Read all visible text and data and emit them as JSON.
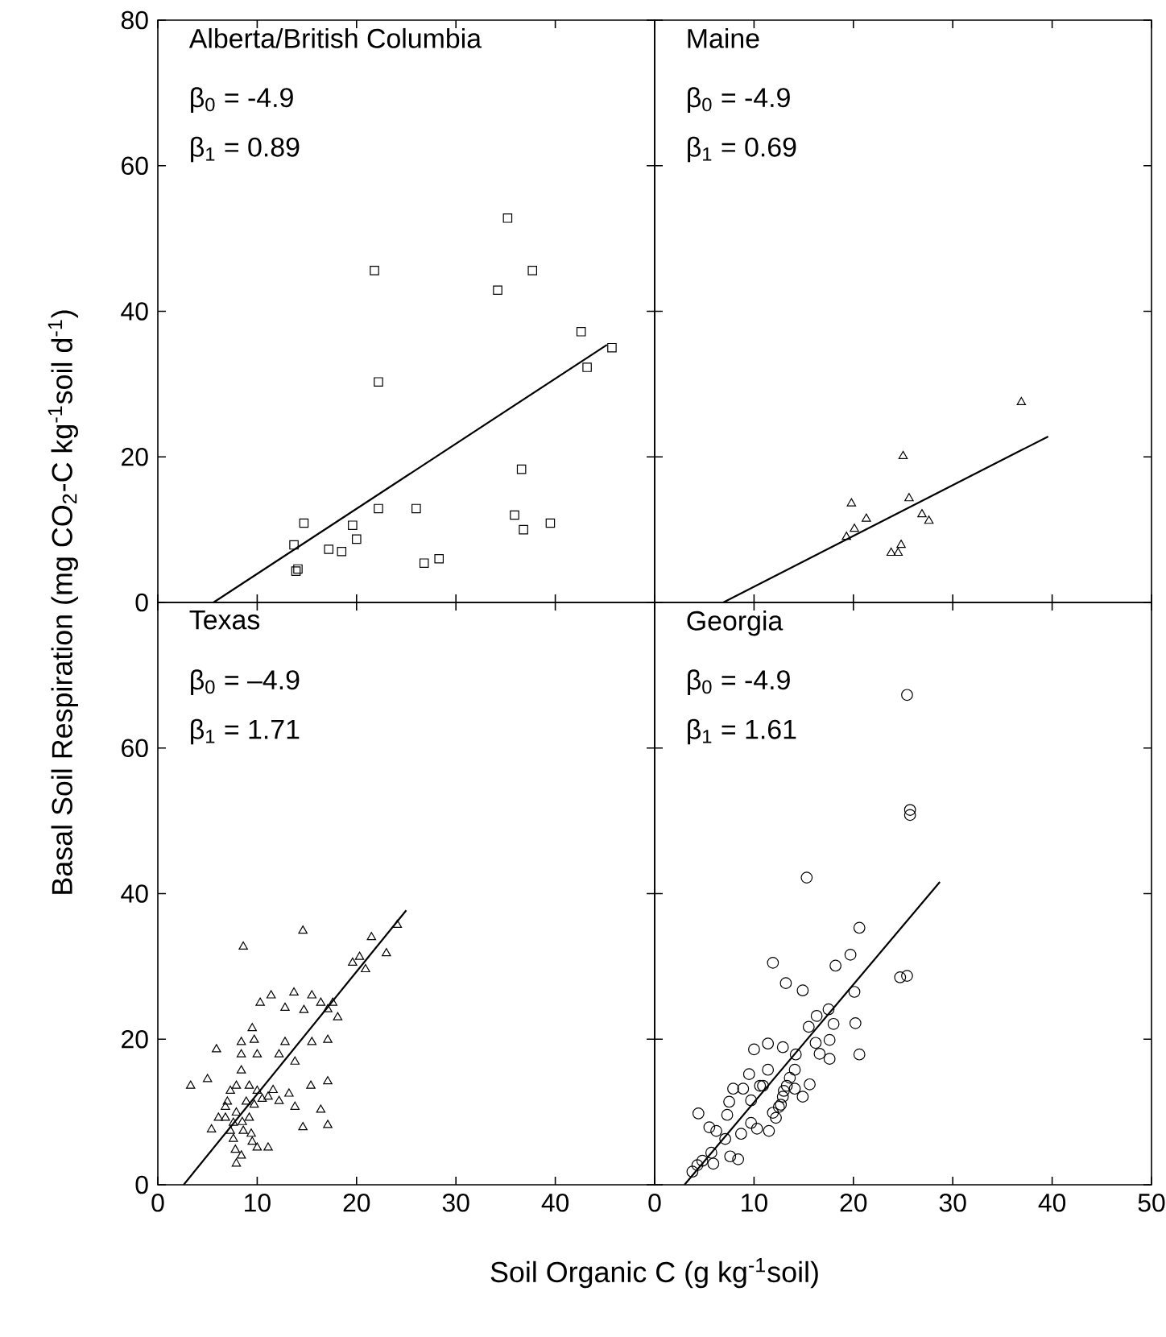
{
  "chart_data": [
    {
      "type": "scatter",
      "title": "Alberta/British Columbia",
      "annotations": [
        "β$_{0}$ = -4.9",
        "β$_{1}$ = 0.89"
      ],
      "ylabel": "Basal Soil Respiration (mg CO$_{2}$-C kg$^{-1}$soil d$^{-1}$)",
      "xlim": [
        0,
        50
      ],
      "ylim": [
        0,
        80
      ],
      "xticks": [
        0,
        10,
        20,
        30,
        40
      ],
      "yticks": [
        0,
        20,
        40,
        60,
        80
      ],
      "tick_labels": "y",
      "series": [
        {
          "marker": "square",
          "color": "#000000",
          "x": [
            13.7,
            14.7,
            13.9,
            14.1,
            17.2,
            18.5,
            19.6,
            20.0,
            21.8,
            22.2,
            22.2,
            26.0,
            26.8,
            28.3,
            34.2,
            35.2,
            37.7,
            36.6,
            35.9,
            36.8,
            39.5,
            42.6,
            43.2,
            45.7
          ],
          "values": [
            7.9,
            10.9,
            4.3,
            4.6,
            7.3,
            7.0,
            10.6,
            8.7,
            45.6,
            30.3,
            12.9,
            12.9,
            5.4,
            6.0,
            42.9,
            52.8,
            45.6,
            18.3,
            12.0,
            10.0,
            10.9,
            37.2,
            32.3,
            35.0
          ]
        },
        {
          "type": "line",
          "color": "#000000",
          "x": [
            5.6,
            45.2
          ],
          "values": [
            0,
            35.4
          ]
        }
      ]
    },
    {
      "type": "scatter",
      "title": "Maine",
      "annotations": [
        "β$_{0}$ = -4.9",
        "β$_{1}$ = 0.69"
      ],
      "xlim": [
        0,
        50
      ],
      "ylim": [
        0,
        80
      ],
      "xticks": [
        0,
        10,
        20,
        30,
        40,
        50
      ],
      "yticks": [
        0,
        20,
        40,
        60,
        80
      ],
      "tick_labels": false,
      "series": [
        {
          "marker": "triangle",
          "color": "#000000",
          "x": [
            19.8,
            19.3,
            20.1,
            21.3,
            23.8,
            24.5,
            24.8,
            25.0,
            25.6,
            26.9,
            27.6,
            36.9
          ],
          "values": [
            13.6,
            9.0,
            10.1,
            11.5,
            6.8,
            6.8,
            7.9,
            20.1,
            14.3,
            12.1,
            11.2,
            27.5
          ]
        },
        {
          "type": "line",
          "color": "#000000",
          "x": [
            6.9,
            39.6
          ],
          "values": [
            0,
            22.8
          ]
        }
      ]
    },
    {
      "type": "scatter",
      "title": "Texas",
      "annotations": [
        "β$_{0}$ = –4.9",
        "β$_{1}$ = 1.71"
      ],
      "xlabel": "Soil Organic C (g kg$^{-1}$soil)",
      "xlim": [
        0,
        50
      ],
      "ylim": [
        0,
        80
      ],
      "xticks": [
        0,
        10,
        20,
        30,
        40
      ],
      "yticks": [
        0,
        20,
        40,
        60
      ],
      "series": [
        {
          "marker": "triangle",
          "color": "#000000",
          "x": [
            3.3,
            5.0,
            5.9,
            8.6,
            14.6,
            10.3,
            11.4,
            9.5,
            8.4,
            9.7,
            8.4,
            10.0,
            8.4,
            12.8,
            12.2,
            13.8,
            12.8,
            13.7,
            14.7,
            15.5,
            15.5,
            17.1,
            16.4,
            17.6,
            18.1,
            17.1,
            19.6,
            20.3,
            20.9,
            21.5,
            23.0,
            24.1,
            15.4,
            17.1,
            16.4,
            17.1,
            14.6,
            13.8,
            13.2,
            12.2,
            11.1,
            11.1,
            10.0,
            9.5,
            7.9,
            8.4,
            5.4,
            6.1,
            6.8,
            7.3,
            7.9,
            9.2,
            10.0,
            6.8,
            7.6,
            7.6,
            7.8,
            8.6,
            9.2,
            9.7,
            8.9,
            7.0,
            7.9,
            8.5,
            7.3,
            11.6,
            10.5,
            9.4
          ],
          "values": [
            13.6,
            14.5,
            18.6,
            32.7,
            34.9,
            25.0,
            26.0,
            21.5,
            19.6,
            19.9,
            17.9,
            17.9,
            15.7,
            19.6,
            17.9,
            16.9,
            24.3,
            26.4,
            24.0,
            26.0,
            19.6,
            19.9,
            25.0,
            25.0,
            23.0,
            24.1,
            30.5,
            31.3,
            29.6,
            34.0,
            31.8,
            35.7,
            13.6,
            14.2,
            10.3,
            8.2,
            7.9,
            10.7,
            12.5,
            11.5,
            12.1,
            5.1,
            5.1,
            5.9,
            2.9,
            4.0,
            7.6,
            9.2,
            10.7,
            12.9,
            13.6,
            13.6,
            12.9,
            9.2,
            8.5,
            6.3,
            4.8,
            7.4,
            9.2,
            11.0,
            11.4,
            11.4,
            9.9,
            8.6,
            7.4,
            13.0,
            11.8,
            7.0
          ]
        },
        {
          "type": "line",
          "color": "#000000",
          "x": [
            2.6,
            25.0
          ],
          "values": [
            0,
            37.7
          ]
        }
      ]
    },
    {
      "type": "scatter",
      "title": "Georgia",
      "annotations": [
        "β$_{0}$ = -4.9",
        "β$_{1}$ = 1.61"
      ],
      "xlim": [
        0,
        50
      ],
      "ylim": [
        0,
        80
      ],
      "xticks": [
        0,
        10,
        20,
        30,
        40,
        50
      ],
      "yticks": [
        0,
        20,
        40,
        60
      ],
      "tick_labels": "x",
      "series": [
        {
          "marker": "circle",
          "color": "#000000",
          "x": [
            25.4,
            25.7,
            25.7,
            15.3,
            20.6,
            19.7,
            18.2,
            11.9,
            13.2,
            14.9,
            20.1,
            24.7,
            25.4,
            17.5,
            16.3,
            15.5,
            18.0,
            20.2,
            20.6,
            17.6,
            17.6,
            16.6,
            16.2,
            14.2,
            12.9,
            11.4,
            10.0,
            9.5,
            8.9,
            7.9,
            7.5,
            7.3,
            4.4,
            5.5,
            6.2,
            7.1,
            7.6,
            8.4,
            5.9,
            4.3,
            3.8,
            11.4,
            10.6,
            9.7,
            9.7,
            10.3,
            11.5,
            8.7,
            11.9,
            12.5,
            12.9,
            13.3,
            13.6,
            14.1,
            14.9,
            15.6,
            14.1,
            12.2,
            12.7,
            10.9,
            13.0,
            5.7,
            4.8
          ],
          "values": [
            67.3,
            51.5,
            50.8,
            42.2,
            35.3,
            31.6,
            30.1,
            30.5,
            27.7,
            26.7,
            26.5,
            28.5,
            28.7,
            24.1,
            23.2,
            21.7,
            22.1,
            22.2,
            17.9,
            19.9,
            17.3,
            18.0,
            19.5,
            17.9,
            18.9,
            19.4,
            18.6,
            15.2,
            13.2,
            13.2,
            11.4,
            9.6,
            9.8,
            7.9,
            7.4,
            6.3,
            3.9,
            3.5,
            2.9,
            2.7,
            1.8,
            15.8,
            13.6,
            11.6,
            8.5,
            7.7,
            7.4,
            7.0,
            9.9,
            10.7,
            12.1,
            13.6,
            14.7,
            15.8,
            12.1,
            13.8,
            13.2,
            9.2,
            11.0,
            13.6,
            12.9,
            4.4,
            3.3
          ]
        },
        {
          "type": "line",
          "color": "#000000",
          "x": [
            3.0,
            28.7
          ],
          "values": [
            0,
            41.6
          ]
        }
      ]
    }
  ]
}
